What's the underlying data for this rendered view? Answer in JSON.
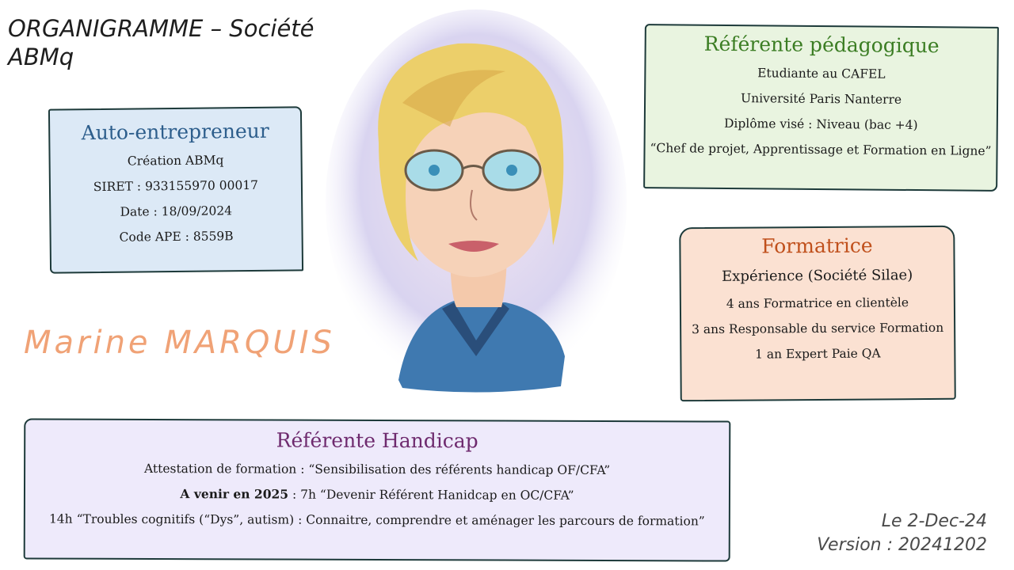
{
  "title": "ORGANIGRAMME – Société ABMq",
  "name": "Marine MARQUIS",
  "cards": {
    "auto": {
      "heading": "Auto-entrepreneur",
      "lines": [
        "Création ABMq",
        "SIRET : 933155970 00017",
        "Date : 18/09/2024",
        "Code APE : 8559B"
      ]
    },
    "peda": {
      "heading": "Référente pédagogique",
      "lines": [
        "Etudiante au CAFEL",
        "Université Paris Nanterre",
        "Diplôme visé : Niveau (bac +4)",
        "“Chef de projet, Apprentissage et Formation en Ligne”"
      ]
    },
    "form": {
      "heading": "Formatrice",
      "subheading": "Expérience (Société Silae)",
      "lines": [
        "4 ans Formatrice en clientèle",
        "3 ans Responsable du service Formation",
        "1 an Expert Paie QA"
      ]
    },
    "hand": {
      "heading": "Référente Handicap",
      "line1": "Attestation de formation : “Sensibilisation des référents handicap OF/CFA”",
      "line2_bold": "A venir en 2025",
      "line2_rest": " : 7h “Devenir Référent Hanidcap en OC/CFA”",
      "line3": "14h “Troubles cognitifs (“Dys”, autism) : Connaitre, comprendre et aménager les parcours de formation”"
    }
  },
  "footer": {
    "date": "Le 2-Dec-24",
    "version": "Version : 20241202"
  },
  "portrait_icon": "woman-portrait-drawing"
}
